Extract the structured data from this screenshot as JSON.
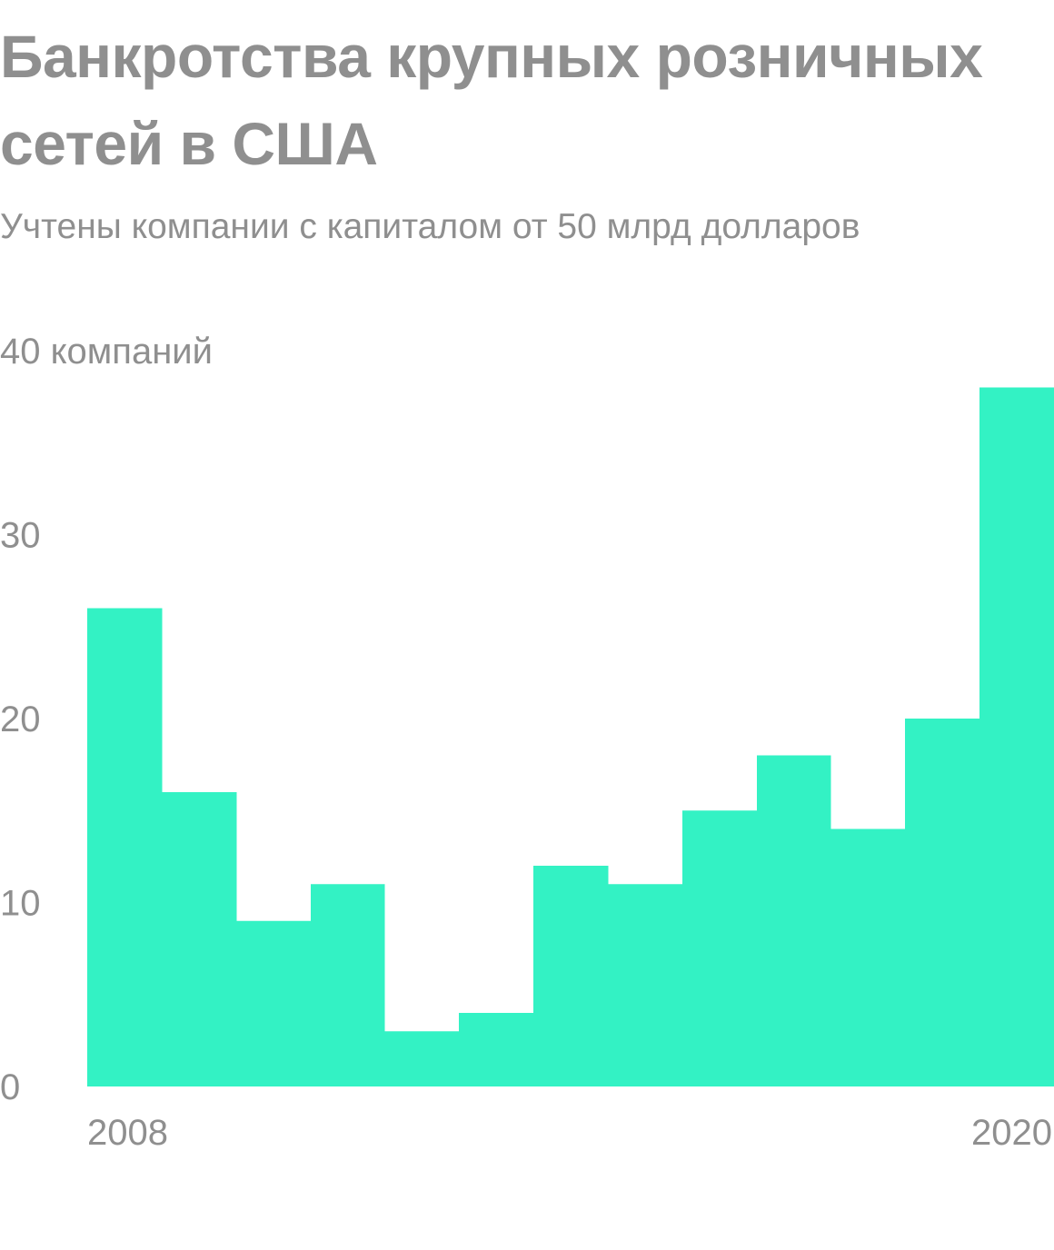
{
  "title": "Банкротства крупных розничных сетей в США",
  "subtitle": "Учтены компании с капиталом от 50 млрд долларов",
  "chart_data": {
    "type": "bar",
    "title": "Банкротства крупных розничных сетей в США",
    "subtitle": "Учтены компании с капиталом от 50 млрд долларов",
    "categories": [
      "2008",
      "2009",
      "2010",
      "2011",
      "2012",
      "2013",
      "2014",
      "2015",
      "2016",
      "2017",
      "2018",
      "2019",
      "2020"
    ],
    "values": [
      26,
      16,
      9,
      11,
      3,
      4,
      12,
      11,
      15,
      18,
      14,
      20,
      38
    ],
    "y_ticks": [
      {
        "value": 0,
        "label": "0"
      },
      {
        "value": 10,
        "label": "10"
      },
      {
        "value": 20,
        "label": "20"
      },
      {
        "value": 30,
        "label": "30"
      },
      {
        "value": 40,
        "label": "40 компаний"
      }
    ],
    "x_tick_labels": [
      {
        "category": "2008",
        "label": "2008"
      },
      {
        "category": "2020",
        "label": "2020"
      }
    ],
    "ylim": [
      0,
      40
    ],
    "grid": false,
    "bar_color": "#33f2c4",
    "text_color": "#8f8f8f"
  }
}
